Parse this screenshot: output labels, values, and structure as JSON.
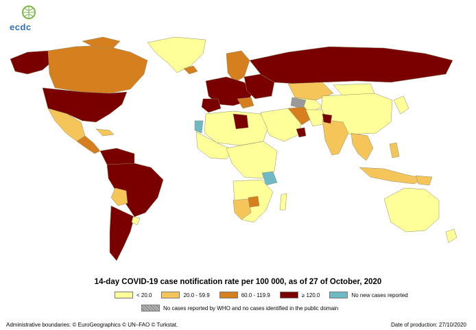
{
  "colors": {
    "lt20": "#ffff99",
    "r20_59": "#f6c55a",
    "r60_119": "#d67f1f",
    "ge120": "#7a0000",
    "no_new": "#6fb9c5",
    "no_cases": "#9a9a9a",
    "border": "#8c8c6a",
    "ocean": "#ffffff"
  },
  "logo": {
    "text": "ecdc",
    "icon": "ecdc-globe-logo"
  },
  "map": {
    "title": "14-day COVID-19 case notification rate per 100 000, as of 27 of October, 2020"
  },
  "legend": {
    "items": [
      {
        "label": "< 20.0",
        "color_key": "lt20"
      },
      {
        "label": "20.0 - 59.9",
        "color_key": "r20_59"
      },
      {
        "label": "60.0 - 119.9",
        "color_key": "r60_119"
      },
      {
        "label": "≥ 120.0",
        "color_key": "ge120"
      },
      {
        "label": "No new cases reported",
        "color_key": "no_new"
      }
    ],
    "hatched_label": "No cases reported by WHO and no cases identified in the public domain"
  },
  "footer": {
    "left": "Administrative boundaries: © EuroGeographics © UN–FAO © Turkstat.",
    "right": "Date of production: 27/10/2020"
  }
}
